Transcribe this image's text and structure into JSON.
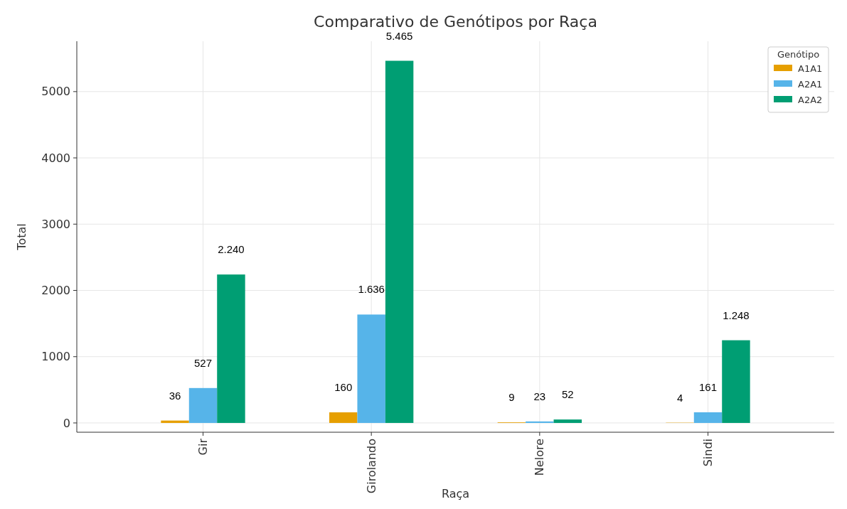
{
  "chart_data": {
    "type": "bar",
    "title": "Comparativo de Genótipos por Raça",
    "xlabel": "Raça",
    "ylabel": "Total",
    "legend_title": "Genótipo",
    "categories": [
      "Gir",
      "Girolando",
      "Nelore",
      "Sindi"
    ],
    "series": [
      {
        "name": "A1A1",
        "color": "#e69f00",
        "values": [
          36,
          160,
          9,
          4
        ],
        "value_labels": [
          "36",
          "160",
          "9",
          "4"
        ]
      },
      {
        "name": "A2A1",
        "color": "#56b4e9",
        "values": [
          527,
          1636,
          23,
          161
        ],
        "value_labels": [
          "527",
          "1.636",
          "23",
          "161"
        ]
      },
      {
        "name": "A2A2",
        "color": "#009e73",
        "values": [
          2240,
          5465,
          52,
          1248
        ],
        "value_labels": [
          "2.240",
          "5.465",
          "52",
          "1.248"
        ]
      }
    ],
    "ylim": [
      -140,
      5760
    ],
    "yticks": [
      0,
      1000,
      2000,
      3000,
      4000,
      5000
    ],
    "grid": true,
    "legend": "top right"
  }
}
